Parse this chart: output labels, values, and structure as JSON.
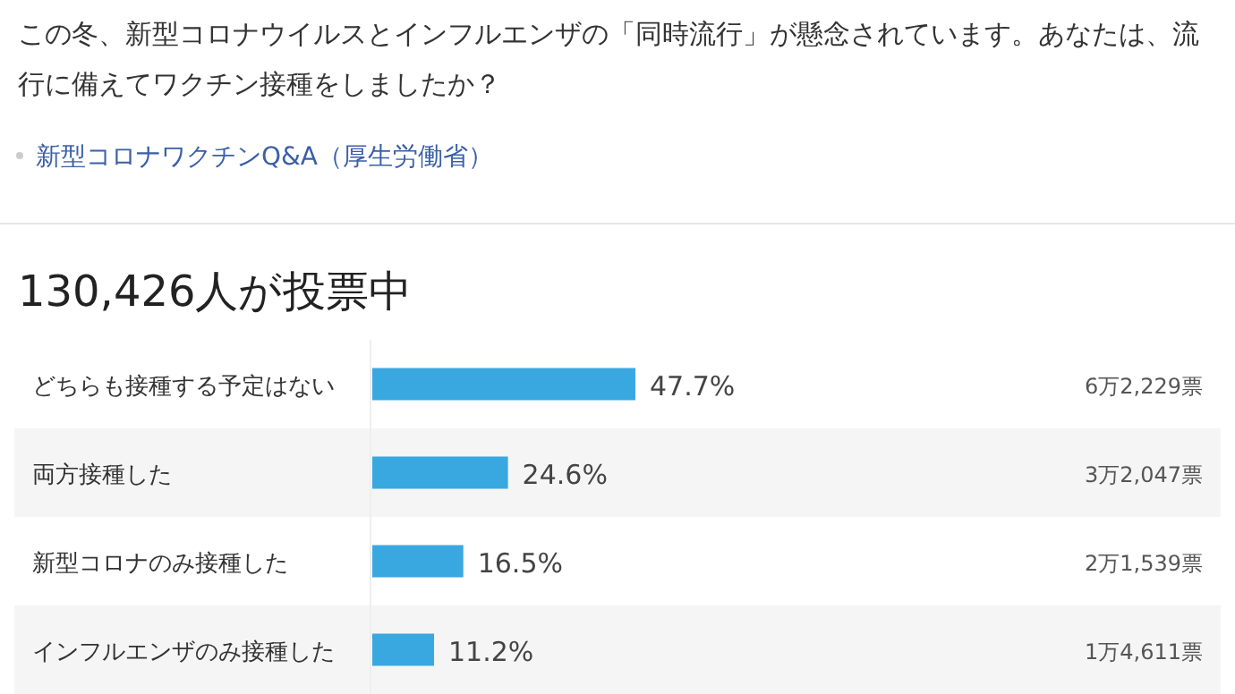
{
  "chart_data": {
    "type": "bar",
    "orientation": "horizontal",
    "title": "この冬、新型コロナウイルスとインフルエンザの「同時流行」が懸念されています。あなたは、流行に備えてワクチン接種をしましたか？",
    "subtitle": "130,426人が投票中",
    "categories": [
      "どちらも接種する予定はない",
      "両方接種した",
      "新型コロナのみ接種した",
      "インフルエンザのみ接種した"
    ],
    "values": [
      47.7,
      24.6,
      16.5,
      11.2
    ],
    "value_labels": [
      "47.7%",
      "24.6%",
      "16.5%",
      "11.2%"
    ],
    "color": "#3aa8e0",
    "annotations": [
      "新型コロナワクチンQ&A（厚生労働省）",
      "6万2,229票",
      "3万2,047票",
      "2万1,539票",
      "1万4,611票"
    ]
  }
}
